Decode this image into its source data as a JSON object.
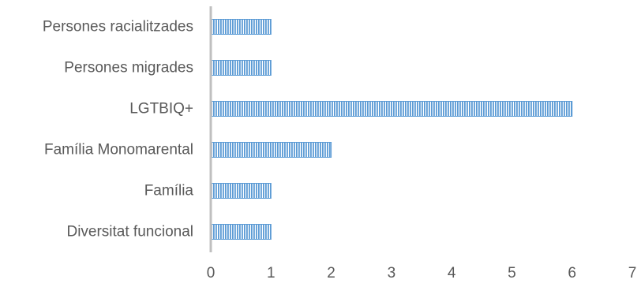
{
  "chart_data": {
    "type": "bar",
    "orientation": "horizontal",
    "title": "",
    "xlabel": "",
    "ylabel": "",
    "categories": [
      "Persones racialitzades",
      "Persones migrades",
      "LGTBIQ+",
      "Família Monomarental",
      "Família",
      "Diversitat funcional"
    ],
    "values": [
      1,
      1,
      6,
      2,
      1,
      1
    ],
    "xlim": [
      0,
      7
    ],
    "x_ticks": [
      "0",
      "1",
      "2",
      "3",
      "4",
      "5",
      "6",
      "7"
    ],
    "grid": false,
    "legend": "none",
    "bar_pattern": "vertical-stripes",
    "colors": {
      "bar_fill": "#5b9bd5",
      "bar_background": "#ffffff",
      "axis": "#bfbfbf",
      "text": "#595959"
    }
  }
}
